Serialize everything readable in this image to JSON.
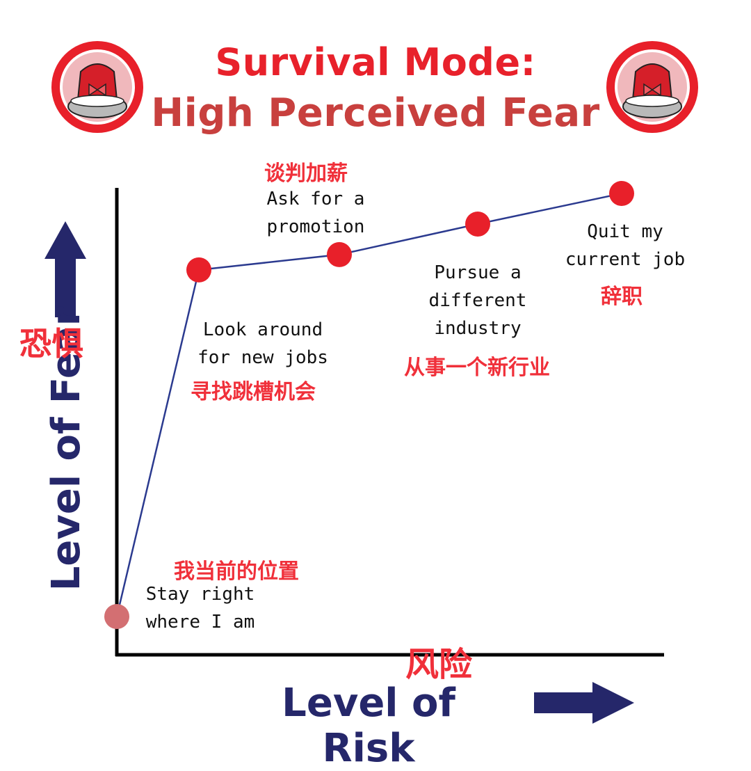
{
  "title": {
    "line1": "Survival Mode:",
    "line2": "High Perceived Fear"
  },
  "icons": {
    "left": "siren-alarm-icon",
    "right": "siren-alarm-icon"
  },
  "axes": {
    "x_title": "Level of Risk",
    "x_title_cn": "风险",
    "y_title": "Level of Fear",
    "y_title_cn": "恐惧"
  },
  "steps": [
    {
      "en": [
        "Stay right",
        "where I am"
      ],
      "cn": "我当前的位置",
      "risk": 0,
      "fear": 0
    },
    {
      "en": [
        "Look around",
        "for new jobs"
      ],
      "cn": "寻找跳槽机会",
      "risk": 1,
      "fear": 6.8
    },
    {
      "en": [
        "Ask for a",
        "promotion"
      ],
      "cn": "谈判加薪",
      "risk": 2,
      "fear": 7.1
    },
    {
      "en": [
        "Pursue a",
        "different",
        "industry"
      ],
      "cn": "从事一个新行业",
      "risk": 3,
      "fear": 7.7
    },
    {
      "en": [
        "Quit my",
        "current job"
      ],
      "cn": "辞职",
      "risk": 4,
      "fear": 8.3
    }
  ],
  "colors": {
    "title_red": "#e8212b",
    "title_red_dark": "#c8403e",
    "navy": "#25276a",
    "line": "#2b3a8f",
    "point": "#e8202a",
    "origin_point": "#d36f72",
    "cn_red": "#f0303a"
  }
}
